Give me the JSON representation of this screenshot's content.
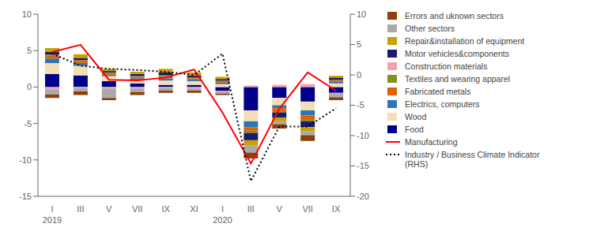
{
  "chart_data": {
    "type": "bar",
    "stacked": true,
    "categories": [
      "I",
      "III",
      "V",
      "VII",
      "IX",
      "XI",
      "I",
      "III",
      "V",
      "VII",
      "IX"
    ],
    "annotations": [
      {
        "text": "2019",
        "x": 0
      },
      {
        "text": "2020",
        "x": 6
      }
    ],
    "ylim": [
      -15,
      10
    ],
    "yticks": [
      -15,
      -10,
      -5,
      0,
      5,
      10
    ],
    "y2lim": [
      -20,
      10
    ],
    "y2ticks": [
      -20,
      -15,
      -10,
      -5,
      0,
      5,
      10
    ],
    "series": [
      {
        "name": "Food",
        "color": "#00008B",
        "values": [
          1.8,
          1.6,
          0.8,
          0.5,
          0.3,
          0.3,
          -0.5,
          -3.2,
          -1.5,
          -2.0,
          -0.8
        ]
      },
      {
        "name": "Wood",
        "color": "#F5DEB3",
        "values": [
          1.5,
          1.3,
          0.7,
          0.5,
          0.6,
          0.5,
          0.4,
          -1.5,
          -1.0,
          -1.2,
          0.5
        ]
      },
      {
        "name": "Electrics, computers",
        "color": "#2E75B6",
        "values": [
          0.6,
          0.4,
          0.2,
          0.2,
          0.3,
          0.2,
          0.2,
          -0.8,
          -0.4,
          -0.7,
          0.2
        ]
      },
      {
        "name": "Fabricated metals",
        "color": "#E06000",
        "values": [
          0.4,
          0.3,
          0.2,
          0.2,
          0.3,
          0.2,
          0.2,
          -0.5,
          -0.4,
          -0.5,
          0.2
        ]
      },
      {
        "name": "Textiles and wearing apparel",
        "color": "#8B8B20",
        "values": [
          0.15,
          0.1,
          0.1,
          0.1,
          0.1,
          0.1,
          0.1,
          -0.3,
          -0.2,
          -0.3,
          0.1
        ]
      },
      {
        "name": "Construction materials",
        "color": "#F4A0B0",
        "values": [
          -0.3,
          -0.1,
          -0.2,
          -0.2,
          -0.1,
          -0.2,
          -0.1,
          0.2,
          0.3,
          0.4,
          -0.1
        ]
      },
      {
        "name": "Motor vehicles&components",
        "color": "#1A1A6E",
        "values": [
          0.4,
          0.3,
          0.2,
          0.3,
          0.4,
          0.3,
          0.2,
          -1.0,
          -0.7,
          -0.8,
          0.3
        ]
      },
      {
        "name": "Repair&installation of equipment",
        "color": "#C8A000",
        "values": [
          0.5,
          0.5,
          0.3,
          0.3,
          0.5,
          0.4,
          0.3,
          -0.7,
          -0.5,
          -0.6,
          0.25
        ]
      },
      {
        "name": "Other sectors",
        "color": "#AAAAAA",
        "values": [
          -0.7,
          -0.5,
          -1.3,
          -0.5,
          -0.4,
          -0.3,
          -0.3,
          -1.0,
          -0.4,
          -0.5,
          -0.5
        ]
      },
      {
        "name": "Errors and uknown sectors",
        "color": "#8B4010",
        "values": [
          -0.5,
          -0.5,
          -0.3,
          -0.4,
          -0.3,
          -0.3,
          -0.2,
          -0.8,
          -0.6,
          -0.8,
          -0.4
        ]
      },
      {
        "name": "Manufacturing",
        "type": "line",
        "color": "red",
        "line_style": "solid",
        "values": [
          4.8,
          5.8,
          1.0,
          0.9,
          1.3,
          2.4,
          -3.5,
          -10.5,
          -3.0,
          2.0,
          -0.5
        ]
      },
      {
        "name": "Industry / Business Climate Indicator\n(RHS)",
        "type": "line",
        "axis": "y2",
        "color": "black",
        "line_style": "dotted",
        "values": [
          3.5,
          1.5,
          1.0,
          0.8,
          0.5,
          0.0,
          3.5,
          -17.5,
          -8.5,
          -8.5,
          -5.5
        ]
      }
    ]
  }
}
